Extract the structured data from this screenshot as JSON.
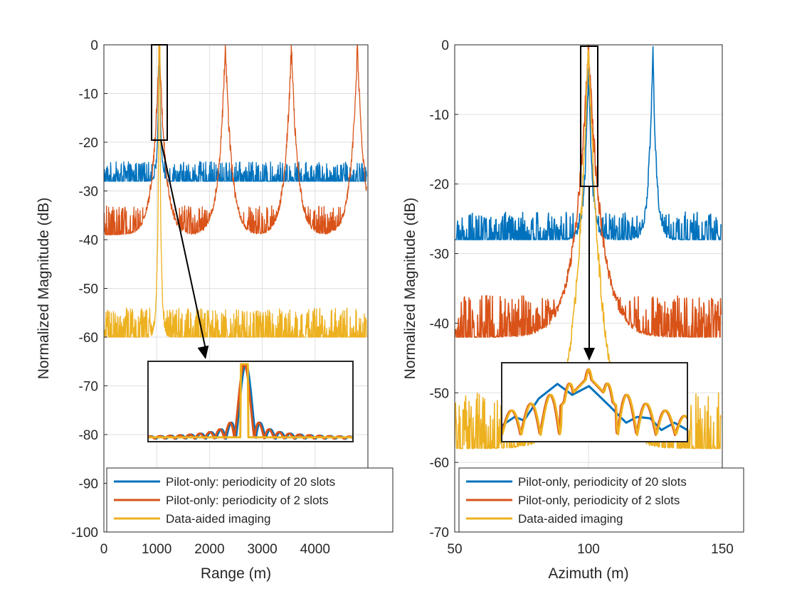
{
  "chart_data": [
    {
      "type": "line",
      "xlabel": "Range (m)",
      "ylabel": "Normalized Magnitude (dB)",
      "xlim": [
        0,
        5000
      ],
      "ylim": [
        -100,
        0
      ],
      "xticks": [
        "0",
        "1000",
        "2000",
        "3000",
        "4000"
      ],
      "yticks": [
        "0",
        "-10",
        "-20",
        "-30",
        "-40",
        "-50",
        "-60",
        "-70",
        "-80",
        "-90",
        "-100"
      ],
      "grid": true,
      "legend": [
        "Pilot-only: periodicity of 20 slots",
        "Pilot-only: periodicity of 2 slots",
        "Data-aided imaging"
      ],
      "legend_position": "bottom",
      "series": [
        {
          "name": "Pilot-only: periodicity of 20 slots",
          "color": "#0072BD",
          "noise_floor_db": -28,
          "peaks_at": [
            1050
          ],
          "peak_db": [
            0
          ]
        },
        {
          "name": "Pilot-only: periodicity of 2 slots",
          "color": "#D95319",
          "noise_floor_db": -39,
          "peaks_at": [
            1050,
            2300,
            3550,
            4800
          ],
          "peak_db": [
            0,
            0,
            0,
            0
          ]
        },
        {
          "name": "Data-aided imaging",
          "color": "#EDB120",
          "noise_floor_db": -60,
          "peaks_at": [
            1050
          ],
          "peak_db": [
            0
          ]
        }
      ],
      "inset": {
        "zoom_x_range": [
          900,
          1200
        ],
        "zoom_y_range": [
          -20,
          0
        ]
      }
    },
    {
      "type": "line",
      "xlabel": "Azimuth (m)",
      "ylabel": "Normalized Magnitude (dB)",
      "xlim": [
        50,
        150
      ],
      "ylim": [
        -70,
        0
      ],
      "xticks": [
        "50",
        "100",
        "150"
      ],
      "yticks": [
        "0",
        "-10",
        "-20",
        "-30",
        "-40",
        "-50",
        "-60",
        "-70"
      ],
      "grid": true,
      "legend": [
        "Pilot-only, periodicity of 20 slots",
        "Pilot-only, periodicity of 2 slots",
        "Data-aided imaging"
      ],
      "legend_position": "bottom",
      "series": [
        {
          "name": "Pilot-only, periodicity of 20 slots",
          "color": "#0072BD",
          "noise_floor_db": -28,
          "peaks_at": [
            100,
            124
          ],
          "peak_db": [
            -3,
            0
          ]
        },
        {
          "name": "Pilot-only, periodicity of 2 slots",
          "color": "#D95319",
          "noise_floor_db": -42,
          "peaks_at": [
            100
          ],
          "peak_db": [
            0
          ]
        },
        {
          "name": "Data-aided imaging",
          "color": "#EDB120",
          "noise_floor_db": -58,
          "peaks_at": [
            100
          ],
          "peak_db": [
            0
          ]
        }
      ],
      "inset": {
        "zoom_x_range": [
          97,
          104
        ],
        "zoom_y_range": [
          -20,
          0
        ]
      }
    }
  ]
}
